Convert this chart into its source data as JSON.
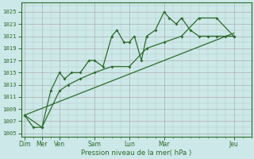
{
  "xlabel": "Pression niveau de la mer( hPa )",
  "bg_color": "#cce8e8",
  "grid_color": "#aaaaaa",
  "line_color": "#2d6b2d",
  "ylim": [
    1004.5,
    1026.5
  ],
  "yticks": [
    1005,
    1007,
    1009,
    1011,
    1013,
    1015,
    1017,
    1019,
    1021,
    1023,
    1025
  ],
  "x_major_pos": [
    0,
    1,
    2,
    4,
    6,
    8,
    12
  ],
  "x_major_labels": [
    "Dim",
    "Mer",
    "Ven",
    "Sam",
    "Lun",
    "Mar",
    "Jeu"
  ],
  "xlim": [
    -0.2,
    12.8
  ],
  "series1_x": [
    0,
    0.5,
    1.0,
    1.5,
    2.0,
    2.3,
    2.7,
    3.2,
    3.7,
    4.0,
    4.5,
    5.0,
    5.3,
    5.7,
    6.0,
    6.3,
    6.7,
    7.0,
    7.5,
    8.0,
    8.3,
    8.7,
    9.0,
    9.5,
    10.0,
    10.5,
    11.0,
    11.5,
    12.0
  ],
  "series1_y": [
    1008,
    1006,
    1006,
    1012,
    1015,
    1014,
    1015,
    1015,
    1017,
    1017,
    1016,
    1021,
    1022,
    1020,
    1020,
    1021,
    1017,
    1021,
    1022,
    1025,
    1024,
    1023,
    1024,
    1022,
    1021,
    1021,
    1021,
    1021,
    1021
  ],
  "series2_x": [
    0,
    1.0,
    2.0,
    2.5,
    3.2,
    4.0,
    5.0,
    6.0,
    7.0,
    8.0,
    9.0,
    10.0,
    11.0,
    12.0
  ],
  "series2_y": [
    1008,
    1006,
    1012,
    1013,
    1014,
    1015,
    1016,
    1016,
    1019,
    1020,
    1021,
    1024,
    1024,
    1021
  ],
  "trend_x": [
    0,
    12
  ],
  "trend_y": [
    1008,
    1021.5
  ]
}
